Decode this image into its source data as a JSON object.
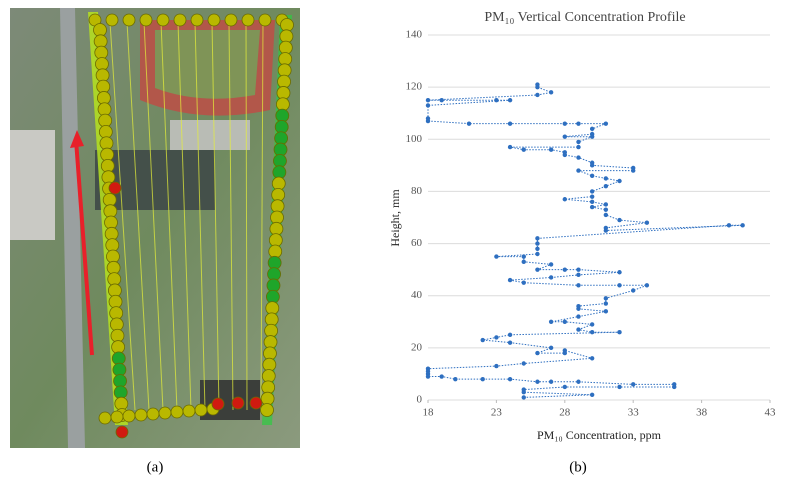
{
  "panel_labels": [
    "(a)",
    "(b)"
  ],
  "chart_data": {
    "type": "line",
    "title": "PM₁₀ Vertical Concentration Profile",
    "x_label": "PM₁₀ Concentration, ppm",
    "y_label": "Height, mm",
    "color": "#2e6fc0",
    "x": [
      26,
      26,
      27,
      26,
      18,
      19,
      23,
      24,
      18,
      18,
      18,
      21,
      24,
      28,
      29,
      31,
      30,
      30,
      28,
      30,
      29,
      29,
      24,
      25,
      27,
      28,
      28,
      29,
      30,
      30,
      33,
      33,
      29,
      30,
      31,
      32,
      31,
      30,
      30,
      28,
      30,
      31,
      30,
      31,
      31,
      32,
      34,
      31,
      31,
      41,
      40,
      26,
      26,
      26,
      26,
      23,
      25,
      25,
      27,
      26,
      28,
      29,
      32,
      29,
      27,
      24,
      25,
      29,
      32,
      34,
      33,
      31,
      31,
      29,
      29,
      31,
      29,
      27,
      28,
      30,
      29,
      30,
      32,
      24,
      23,
      22,
      24,
      27,
      26,
      28,
      28,
      30,
      25,
      23,
      18,
      18,
      18,
      18,
      19,
      20,
      22,
      24,
      26,
      27,
      29,
      33,
      36,
      36,
      32,
      28,
      25,
      25,
      30,
      25
    ],
    "values": [
      121,
      120,
      118,
      117,
      115,
      115,
      115,
      115,
      113,
      108,
      107,
      106,
      106,
      106,
      106,
      106,
      104,
      102,
      101,
      101,
      99,
      97,
      97,
      96,
      96,
      95,
      94,
      93,
      91,
      90,
      89,
      88,
      88,
      86,
      85,
      84,
      82,
      80,
      78,
      77,
      76,
      75,
      74,
      73,
      71,
      69,
      68,
      66,
      65,
      67,
      67,
      62,
      60,
      58,
      56,
      55,
      55,
      53,
      52,
      50,
      50,
      50,
      49,
      48,
      47,
      46,
      45,
      44,
      44,
      44,
      42,
      39,
      37,
      36,
      35,
      34,
      32,
      30,
      30,
      29,
      27,
      26,
      26,
      25,
      24,
      23,
      22,
      20,
      18,
      18,
      19,
      16,
      14,
      13,
      12,
      11,
      10,
      9,
      9,
      8,
      8,
      8,
      7,
      7,
      7,
      6,
      6,
      5,
      5,
      5,
      4,
      3,
      2,
      1
    ],
    "xlim": [
      18,
      43
    ],
    "xticks": [
      18,
      23,
      28,
      33,
      38,
      43
    ],
    "ylim": [
      0,
      140
    ],
    "yticks": [
      0,
      20,
      40,
      60,
      80,
      100,
      120,
      140
    ],
    "grid": true
  }
}
